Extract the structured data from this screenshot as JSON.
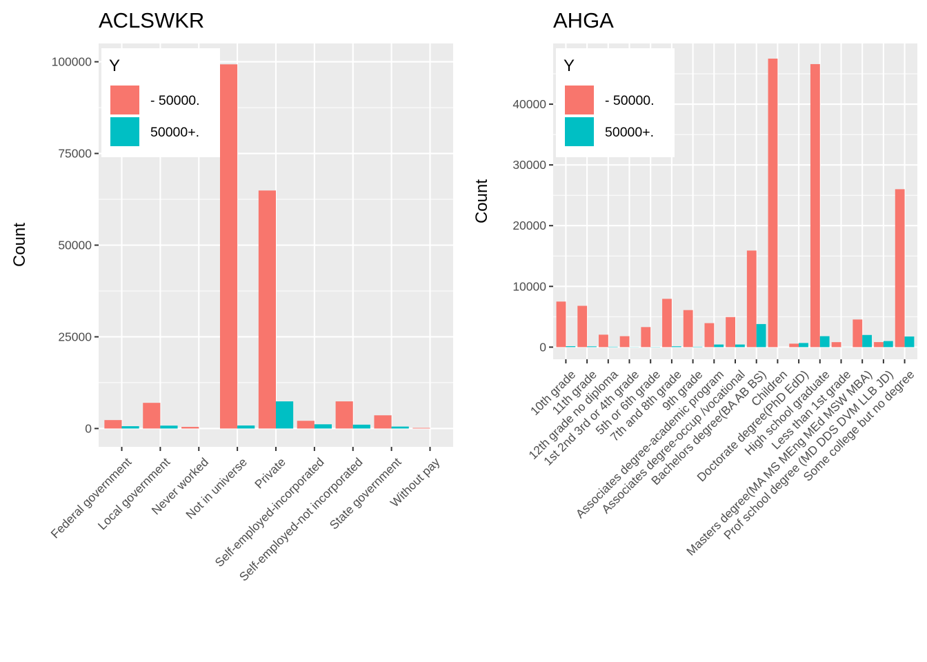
{
  "chart_data": [
    {
      "type": "bar",
      "title": "ACLSWKR",
      "xlabel": "",
      "ylabel": "Count",
      "ylim": [
        -5000,
        105000
      ],
      "yticks": [
        0,
        25000,
        50000,
        75000,
        100000
      ],
      "yticklabels": [
        "0",
        "25000",
        "50000",
        "75000",
        "100000"
      ],
      "grid": true,
      "legend_placement": "top-left",
      "categories": [
        "Federal government",
        "Local government",
        "Never worked",
        "Not in universe",
        "Private",
        "Self-employed-incorporated",
        "Self-employed-not incorporated",
        "State government",
        "Without pay"
      ],
      "legend": {
        "title": "Y",
        "entries": [
          {
            "label": "- 50000.",
            "color": "#F8766D"
          },
          {
            "label": "50000+.",
            "color": "#00BFC4"
          }
        ]
      },
      "series": [
        {
          "legend_label": "- 50000.",
          "color": "#F8766D",
          "values": [
            2300,
            7000,
            440,
            99300,
            64900,
            2100,
            7400,
            3600,
            165
          ]
        },
        {
          "legend_label": "50000+.",
          "color": "#00BFC4",
          "values": [
            630,
            790,
            0,
            820,
            7400,
            1150,
            1050,
            530,
            0
          ]
        }
      ]
    },
    {
      "type": "bar",
      "title": "AHGA",
      "xlabel": "",
      "ylabel": "Count",
      "ylim": [
        -2000,
        50000
      ],
      "yticks": [
        0,
        10000,
        20000,
        30000,
        40000
      ],
      "yticklabels": [
        "0",
        "10000",
        "20000",
        "30000",
        "40000"
      ],
      "grid": true,
      "legend_placement": "top-left",
      "categories": [
        "10th grade",
        "11th grade",
        "12th grade no diploma",
        "1st 2nd 3rd or 4th grade",
        "5th or 6th grade",
        "7th and 8th grade",
        "9th grade",
        "Associates degree-academic program",
        "Associates degree-occup /vocational",
        "Bachelors degree(BA AB BS)",
        "Children",
        "Doctorate degree(PhD EdD)",
        "High school graduate",
        "Less than 1st grade",
        "Masters degree(MA MS MEng MEd MSW MBA)",
        "Prof school degree (MD DDS DVM LLB JD)",
        "Some college but no degree"
      ],
      "legend": {
        "title": "Y",
        "entries": [
          {
            "label": "- 50000.",
            "color": "#F8766D"
          },
          {
            "label": "50000+.",
            "color": "#00BFC4"
          }
        ]
      },
      "series": [
        {
          "legend_label": "- 50000.",
          "color": "#F8766D",
          "values": [
            7500,
            6800,
            2050,
            1800,
            3300,
            7950,
            6100,
            3950,
            4950,
            15900,
            47500,
            570,
            46600,
            820,
            4550,
            830,
            26000
          ]
        },
        {
          "legend_label": "50000+.",
          "color": "#00BFC4",
          "values": [
            150,
            120,
            60,
            20,
            30,
            130,
            60,
            430,
            430,
            3800,
            0,
            680,
            1800,
            10,
            2000,
            1000,
            1750
          ]
        }
      ]
    }
  ]
}
